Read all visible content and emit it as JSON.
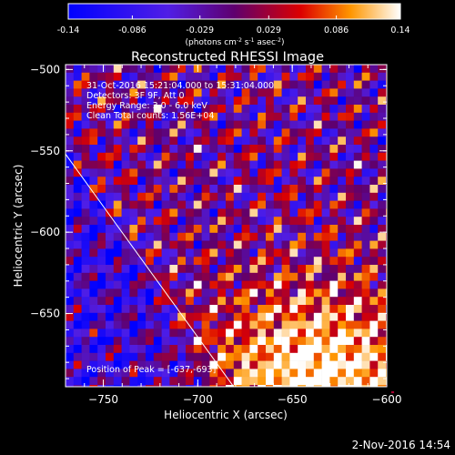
{
  "colorbar": {
    "ticks": [
      "-0.14",
      "-0.086",
      "-0.029",
      "0.029",
      "0.086",
      "0.14"
    ],
    "tick_values": [
      -0.14,
      -0.086,
      -0.029,
      0.029,
      0.086,
      0.14
    ],
    "range": [
      -0.14,
      0.14
    ],
    "unit_parts": [
      "(photons cm",
      "-2",
      " s",
      "-1",
      " asec",
      "-2",
      ")"
    ]
  },
  "chart_data": {
    "type": "heatmap",
    "title": "Reconstructed RHESSI Image",
    "xlabel": "Heliocentric X (arcsec)",
    "ylabel": "Heliocentric Y (arcsec)",
    "xlim": [
      -770,
      -600
    ],
    "ylim": [
      -695,
      -497
    ],
    "x_ticks": [
      -750,
      -700,
      -650,
      -600
    ],
    "x_tick_labels": [
      "−750",
      "−700",
      "−650",
      "−600"
    ],
    "y_ticks": [
      -500,
      -550,
      -600,
      -650
    ],
    "y_tick_labels": [
      "−500",
      "−550",
      "−600",
      "−650"
    ],
    "value_range": [
      -0.14,
      0.14
    ],
    "peak": {
      "x": -637,
      "y": -693
    },
    "limb_line": {
      "from": {
        "x": -770,
        "y": -552
      },
      "to": {
        "x": -681,
        "y": -695
      }
    },
    "info_lines": [
      "31-Oct-2016 15:21:04.000 to 15:31:04.000",
      "Detectors: 3F 9F, Att 0",
      "Energy Range: 3.0 - 6.0 keV",
      "Clean     Total counts: 1.56E+04"
    ],
    "peak_label": "Position of Peak = [-637,-693]"
  },
  "footer": {
    "timestamp": "2-Nov-2016 14:54"
  }
}
